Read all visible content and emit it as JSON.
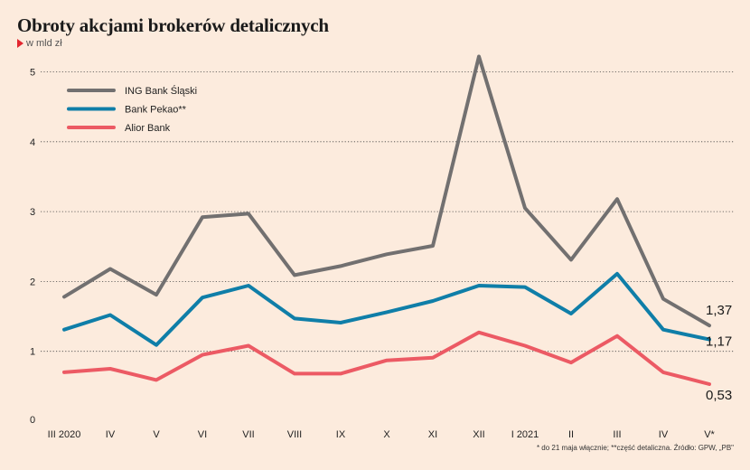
{
  "header": {
    "title": "Obroty akcjami brokerów detalicznych",
    "subtitle": "w mld zł"
  },
  "footnote": "* do 21 maja włącznie; **część detaliczna. Źródło: GPW, „PB\"",
  "colors": {
    "background": "#fcebdd",
    "grid": "#444444",
    "accent_marker": "#e3262f"
  },
  "chart_data": {
    "type": "line",
    "title": "Obroty akcjami brokerów detalicznych",
    "ylabel": "w mld zł",
    "xlabel": "",
    "categories": [
      "III 2020",
      "IV",
      "V",
      "VI",
      "VII",
      "VIII",
      "IX",
      "X",
      "XI",
      "XII",
      "I 2021",
      "II",
      "III",
      "IV",
      "V*"
    ],
    "ylim": [
      0,
      5.5
    ],
    "yticks": [
      0,
      1,
      2,
      3,
      4,
      5
    ],
    "ytick_labels": [
      "0",
      "1",
      "2",
      "3",
      "4",
      "5"
    ],
    "grid": "horizontal dotted",
    "legend_placement": "top-left",
    "series": [
      {
        "name": "ING Bank Śląski",
        "color": "#727070",
        "values": [
          1.78,
          2.18,
          1.81,
          2.92,
          2.97,
          2.09,
          2.22,
          2.39,
          2.51,
          5.22,
          3.05,
          2.31,
          3.18,
          1.75,
          1.37
        ],
        "end_label": "1,37"
      },
      {
        "name": "Bank Pekao**",
        "color": "#0f7ea8",
        "values": [
          1.31,
          1.52,
          1.09,
          1.77,
          1.94,
          1.47,
          1.41,
          1.56,
          1.72,
          1.94,
          1.92,
          1.54,
          2.11,
          1.31,
          1.17
        ],
        "end_label": "1,17"
      },
      {
        "name": "Alior Bank",
        "color": "#ec5a64",
        "values": [
          0.7,
          0.75,
          0.59,
          0.95,
          1.08,
          0.68,
          0.68,
          0.87,
          0.91,
          1.27,
          1.08,
          0.84,
          1.22,
          0.7,
          0.53
        ],
        "end_label": "0,53"
      }
    ]
  }
}
